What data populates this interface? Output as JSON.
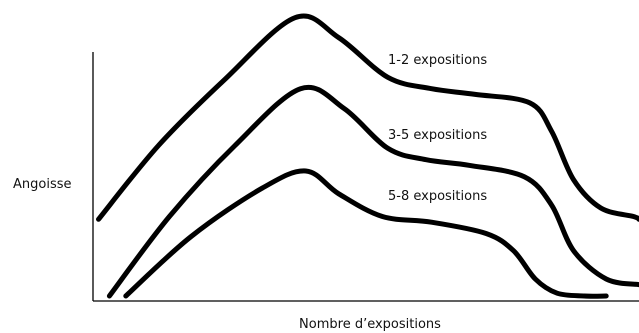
{
  "chart_data": {
    "type": "line",
    "xlabel": "Nombre d’expositions",
    "ylabel": "Angoisse",
    "grid": false,
    "legend": "inline-labels",
    "xlim": [
      0,
      100
    ],
    "ylim": [
      0,
      100
    ],
    "line_color": "#000000",
    "series": [
      {
        "name": "1-2 expositions",
        "x": [
          1,
          12,
          24,
          37,
          45,
          54,
          62,
          70,
          80,
          84,
          88,
          93,
          99,
          100
        ],
        "y": [
          27,
          53,
          76,
          98,
          91,
          77,
          73,
          71,
          68,
          58,
          41,
          31,
          28,
          27
        ]
      },
      {
        "name": "3-5 expositions",
        "x": [
          3,
          14,
          26,
          38,
          46,
          54,
          61,
          69,
          79,
          84,
          88,
          94,
          100
        ],
        "y": [
          0,
          28,
          53,
          73,
          66,
          52,
          48,
          46,
          42,
          32,
          16,
          6,
          4
        ]
      },
      {
        "name": "5-8 expositions",
        "x": [
          6,
          18,
          31,
          39,
          45,
          53,
          62,
          72,
          77,
          81,
          85,
          90,
          94
        ],
        "y": [
          0,
          21,
          38,
          44,
          36,
          28,
          26,
          22,
          16,
          6,
          1,
          0,
          0
        ]
      }
    ]
  }
}
